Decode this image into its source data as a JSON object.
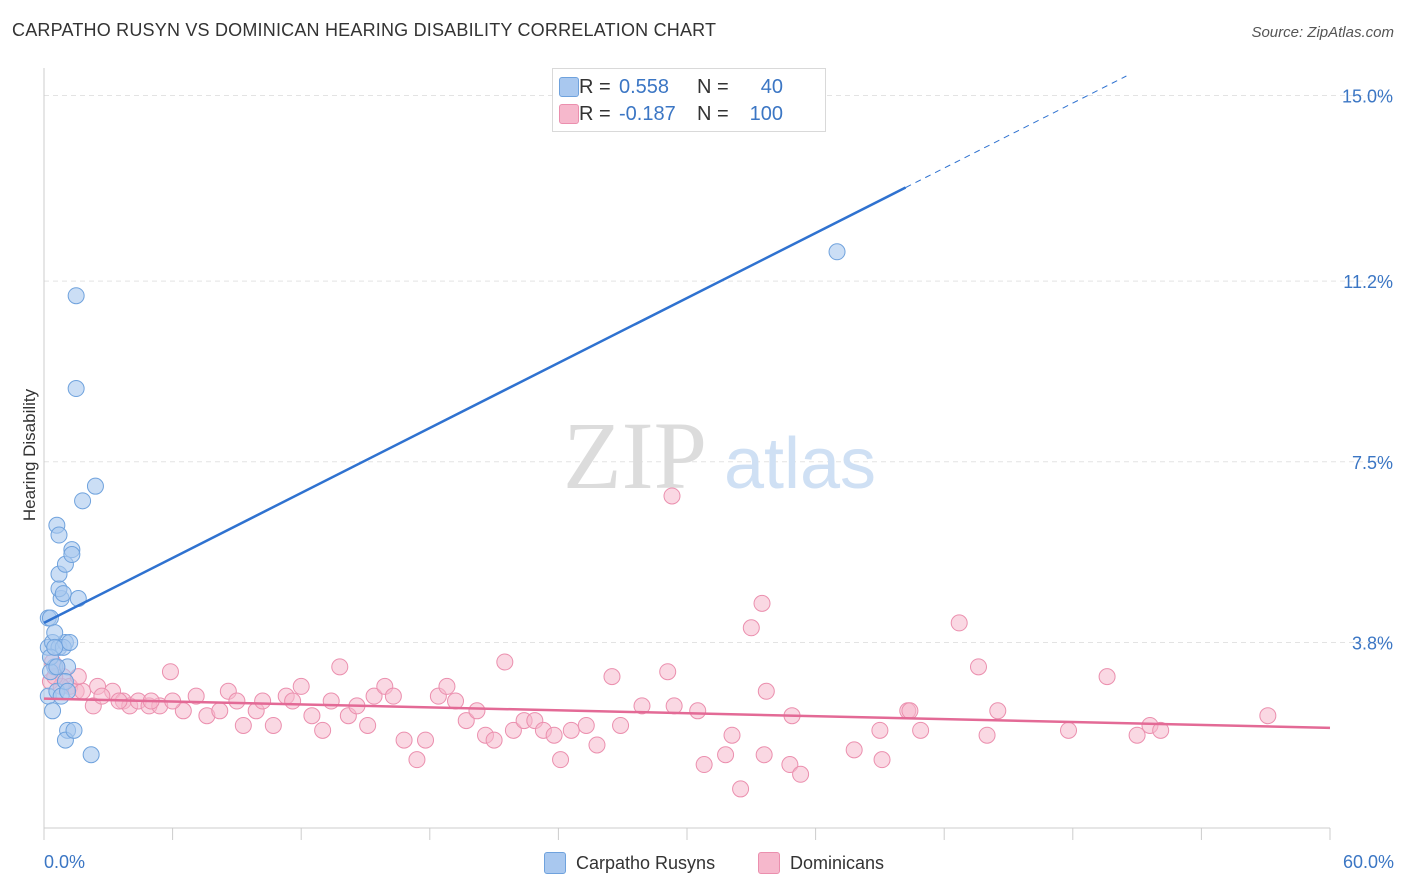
{
  "title": "CARPATHO RUSYN VS DOMINICAN HEARING DISABILITY CORRELATION CHART",
  "source": "Source: ZipAtlas.com",
  "watermark": {
    "zip": "ZIP",
    "atlas": "atlas"
  },
  "colors": {
    "blue_fill": "#a9c8ef",
    "blue_stroke": "#6fa2dd",
    "blue_line": "#2f72d0",
    "pink_fill": "#f6b8cc",
    "pink_stroke": "#eb8fae",
    "pink_line": "#e36a96",
    "axis_text": "#3b76c4",
    "grid": "#e3e3e3"
  },
  "stats": {
    "rows": [
      {
        "r_label": "R =",
        "r_value": "0.558",
        "n_label": "N =",
        "n_value": "40"
      },
      {
        "r_label": "R =",
        "r_value": "-0.187",
        "n_label": "N =",
        "n_value": "100"
      }
    ]
  },
  "legend": {
    "series1": "Carpatho Rusyns",
    "series2": "Dominicans"
  },
  "chart_data": {
    "type": "scatter",
    "title": "CARPATHO RUSYN VS DOMINICAN HEARING DISABILITY CORRELATION CHART",
    "xlabel": "",
    "ylabel": "Hearing Disability",
    "xlim": [
      0,
      60
    ],
    "ylim": [
      0,
      15.4
    ],
    "x_tick_labels": [
      "0.0%",
      "60.0%"
    ],
    "y_ticks": [
      3.8,
      7.5,
      11.2,
      15.0
    ],
    "y_tick_labels": [
      "3.8%",
      "7.5%",
      "11.2%",
      "15.0%"
    ],
    "series": [
      {
        "name": "Carpatho Rusyns",
        "r": 0.558,
        "n": 40,
        "trend": {
          "x_start": 0,
          "y_start": 4.2,
          "x_solid_end": 40.2,
          "x_end": 50.5,
          "y_end": 15.4
        },
        "points": [
          [
            0.2,
            4.3
          ],
          [
            0.3,
            4.3
          ],
          [
            0.2,
            3.7
          ],
          [
            0.4,
            3.8
          ],
          [
            0.5,
            3.3
          ],
          [
            0.3,
            3.2
          ],
          [
            0.2,
            2.7
          ],
          [
            0.6,
            2.8
          ],
          [
            0.4,
            2.4
          ],
          [
            0.7,
            3.7
          ],
          [
            0.8,
            2.7
          ],
          [
            1.0,
            3.8
          ],
          [
            0.9,
            3.7
          ],
          [
            1.2,
            3.8
          ],
          [
            1.1,
            3.3
          ],
          [
            1.0,
            3.0
          ],
          [
            1.1,
            2.8
          ],
          [
            0.5,
            4.0
          ],
          [
            0.8,
            4.7
          ],
          [
            0.7,
            4.9
          ],
          [
            0.9,
            4.8
          ],
          [
            0.7,
            5.2
          ],
          [
            1.0,
            5.4
          ],
          [
            1.3,
            5.7
          ],
          [
            1.3,
            5.6
          ],
          [
            1.6,
            4.7
          ],
          [
            0.6,
            6.2
          ],
          [
            0.7,
            6.0
          ],
          [
            1.8,
            6.7
          ],
          [
            2.4,
            7.0
          ],
          [
            1.5,
            9.0
          ],
          [
            1.5,
            10.9
          ],
          [
            1.1,
            2.0
          ],
          [
            1.0,
            1.8
          ],
          [
            1.4,
            2.0
          ],
          [
            2.2,
            1.5
          ],
          [
            0.3,
            3.5
          ],
          [
            0.5,
            3.7
          ],
          [
            0.6,
            3.3
          ],
          [
            37.0,
            11.8
          ]
        ]
      },
      {
        "name": "Dominicans",
        "r": -0.187,
        "n": 100,
        "trend": {
          "x_start": 0,
          "y_start": 2.65,
          "x_end": 60,
          "y_end": 2.05
        },
        "points": [
          [
            0.3,
            3.0
          ],
          [
            0.6,
            3.3
          ],
          [
            0.9,
            3.1
          ],
          [
            1.2,
            2.9
          ],
          [
            1.5,
            2.8
          ],
          [
            1.8,
            2.8
          ],
          [
            2.3,
            2.5
          ],
          [
            2.5,
            2.9
          ],
          [
            3.2,
            2.8
          ],
          [
            3.7,
            2.6
          ],
          [
            4.0,
            2.5
          ],
          [
            4.4,
            2.6
          ],
          [
            4.9,
            2.5
          ],
          [
            5.4,
            2.5
          ],
          [
            5.9,
            3.2
          ],
          [
            6.5,
            2.4
          ],
          [
            7.1,
            2.7
          ],
          [
            7.6,
            2.3
          ],
          [
            8.2,
            2.4
          ],
          [
            8.6,
            2.8
          ],
          [
            9.0,
            2.6
          ],
          [
            9.3,
            2.1
          ],
          [
            9.9,
            2.4
          ],
          [
            10.2,
            2.6
          ],
          [
            10.7,
            2.1
          ],
          [
            11.3,
            2.7
          ],
          [
            11.6,
            2.6
          ],
          [
            12.0,
            2.9
          ],
          [
            12.5,
            2.3
          ],
          [
            13.0,
            2.0
          ],
          [
            13.4,
            2.6
          ],
          [
            13.8,
            3.3
          ],
          [
            14.2,
            2.3
          ],
          [
            14.6,
            2.5
          ],
          [
            15.1,
            2.1
          ],
          [
            15.4,
            2.7
          ],
          [
            15.9,
            2.9
          ],
          [
            16.3,
            2.7
          ],
          [
            16.8,
            1.8
          ],
          [
            17.4,
            1.4
          ],
          [
            17.8,
            1.8
          ],
          [
            18.4,
            2.7
          ],
          [
            18.8,
            2.9
          ],
          [
            19.2,
            2.6
          ],
          [
            19.7,
            2.2
          ],
          [
            20.2,
            2.4
          ],
          [
            20.6,
            1.9
          ],
          [
            21.0,
            1.8
          ],
          [
            21.5,
            3.4
          ],
          [
            21.9,
            2.0
          ],
          [
            22.4,
            2.2
          ],
          [
            22.9,
            2.2
          ],
          [
            23.3,
            2.0
          ],
          [
            23.8,
            1.9
          ],
          [
            24.1,
            1.4
          ],
          [
            24.6,
            2.0
          ],
          [
            25.3,
            2.1
          ],
          [
            25.8,
            1.7
          ],
          [
            26.5,
            3.1
          ],
          [
            26.9,
            2.1
          ],
          [
            27.9,
            2.5
          ],
          [
            29.1,
            3.2
          ],
          [
            29.4,
            2.5
          ],
          [
            29.3,
            6.8
          ],
          [
            30.5,
            2.4
          ],
          [
            30.8,
            1.3
          ],
          [
            31.8,
            1.5
          ],
          [
            32.1,
            1.9
          ],
          [
            32.5,
            0.8
          ],
          [
            33.0,
            4.1
          ],
          [
            33.5,
            4.6
          ],
          [
            33.7,
            2.8
          ],
          [
            33.6,
            1.5
          ],
          [
            34.9,
            2.3
          ],
          [
            34.8,
            1.3
          ],
          [
            35.3,
            1.1
          ],
          [
            37.8,
            1.6
          ],
          [
            39.0,
            2.0
          ],
          [
            39.1,
            1.4
          ],
          [
            40.3,
            2.4
          ],
          [
            40.4,
            2.4
          ],
          [
            40.9,
            2.0
          ],
          [
            42.7,
            4.2
          ],
          [
            43.6,
            3.3
          ],
          [
            44.0,
            1.9
          ],
          [
            44.5,
            2.4
          ],
          [
            47.8,
            2.0
          ],
          [
            49.6,
            3.1
          ],
          [
            51.0,
            1.9
          ],
          [
            51.6,
            2.1
          ],
          [
            52.1,
            2.0
          ],
          [
            57.1,
            2.3
          ],
          [
            0.4,
            3.4
          ],
          [
            0.8,
            2.9
          ],
          [
            1.6,
            3.1
          ],
          [
            0.5,
            3.1
          ],
          [
            2.7,
            2.7
          ],
          [
            3.5,
            2.6
          ],
          [
            6.0,
            2.6
          ],
          [
            5.0,
            2.6
          ]
        ]
      }
    ]
  }
}
